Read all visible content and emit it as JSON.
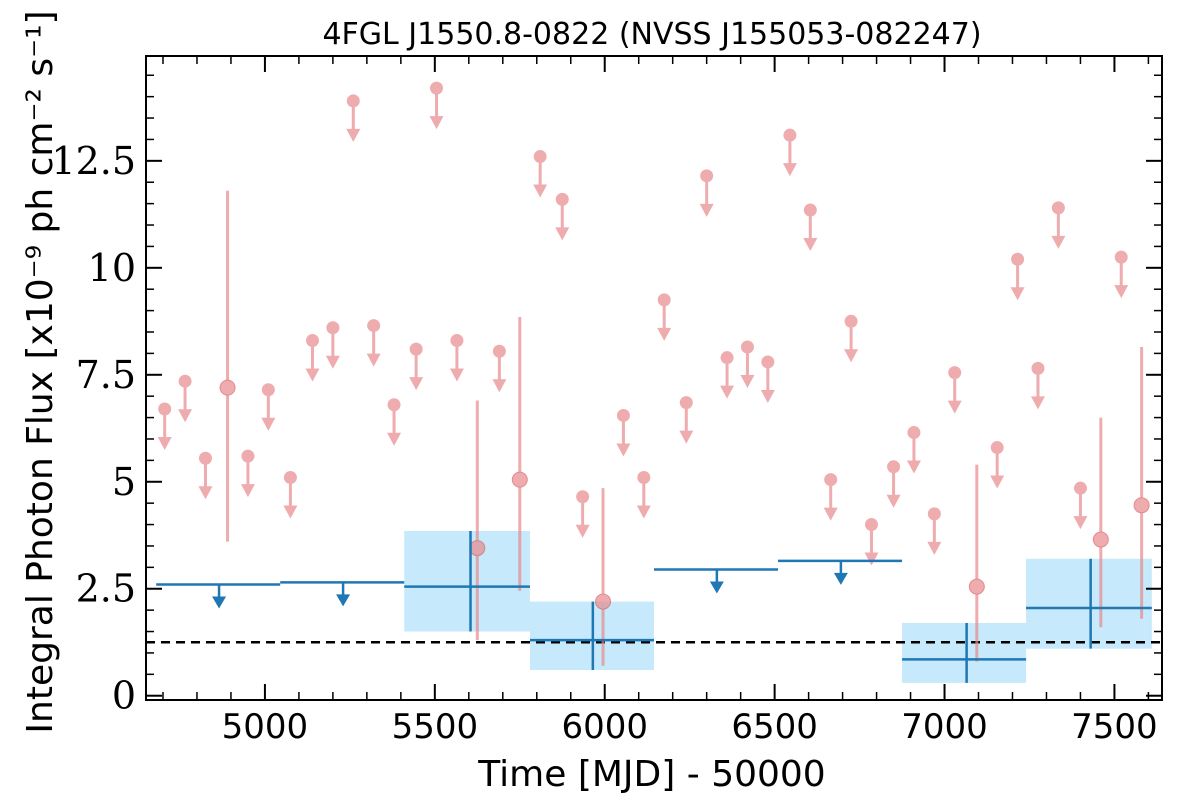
{
  "chart_data": {
    "type": "scatter",
    "title": "4FGL J1550.8-0822 (NVSS J155053-082247)",
    "xlabel": "Time [MJD] - 50000",
    "ylabel": "Integral Photon Flux [x10⁻⁹ ph cm⁻² s⁻¹]",
    "xlim": [
      4650,
      7640
    ],
    "ylim": [
      -0.1,
      14.95
    ],
    "x_ticks": [
      5000,
      5500,
      6000,
      6500,
      7000,
      7500
    ],
    "x_tick_labels": [
      "5000",
      "5500",
      "6000",
      "6500",
      "7000",
      "7500"
    ],
    "y_ticks": [
      0,
      2.5,
      5,
      7.5,
      10,
      12.5
    ],
    "y_tick_labels": [
      "0",
      "2.5",
      "5",
      "7.5",
      "10",
      "12.5"
    ],
    "colors": {
      "short_bins": "#e8898c",
      "long_bins": "#1f77b4",
      "long_band": "#c6e9fb",
      "average_line": "#000000"
    },
    "average_flux": 1.25,
    "series": [
      {
        "upper_limits": [
          {
            "x": 4705,
            "y": 6.7
          },
          {
            "x": 4765,
            "y": 7.35
          },
          {
            "x": 4825,
            "y": 5.55
          },
          {
            "x": 4950,
            "y": 5.6
          },
          {
            "x": 5010,
            "y": 7.15
          },
          {
            "x": 5075,
            "y": 5.1
          },
          {
            "x": 5140,
            "y": 8.3
          },
          {
            "x": 5200,
            "y": 8.6
          },
          {
            "x": 5260,
            "y": 13.9
          },
          {
            "x": 5320,
            "y": 8.65
          },
          {
            "x": 5380,
            "y": 6.8
          },
          {
            "x": 5445,
            "y": 8.1
          },
          {
            "x": 5505,
            "y": 14.2
          },
          {
            "x": 5565,
            "y": 8.3
          },
          {
            "x": 5690,
            "y": 8.05
          },
          {
            "x": 5810,
            "y": 12.6
          },
          {
            "x": 5875,
            "y": 11.6
          },
          {
            "x": 5935,
            "y": 4.65
          },
          {
            "x": 6055,
            "y": 6.55
          },
          {
            "x": 6115,
            "y": 5.1
          },
          {
            "x": 6175,
            "y": 9.25
          },
          {
            "x": 6240,
            "y": 6.85
          },
          {
            "x": 6300,
            "y": 12.15
          },
          {
            "x": 6360,
            "y": 7.9
          },
          {
            "x": 6420,
            "y": 8.15
          },
          {
            "x": 6480,
            "y": 7.8
          },
          {
            "x": 6545,
            "y": 13.1
          },
          {
            "x": 6605,
            "y": 11.35
          },
          {
            "x": 6665,
            "y": 5.05
          },
          {
            "x": 6725,
            "y": 8.75
          },
          {
            "x": 6785,
            "y": 4.0
          },
          {
            "x": 6850,
            "y": 5.35
          },
          {
            "x": 6910,
            "y": 6.15
          },
          {
            "x": 6970,
            "y": 4.25
          },
          {
            "x": 7030,
            "y": 7.55
          },
          {
            "x": 7155,
            "y": 5.8
          },
          {
            "x": 7215,
            "y": 10.2
          },
          {
            "x": 7275,
            "y": 7.65
          },
          {
            "x": 7335,
            "y": 11.4
          },
          {
            "x": 7400,
            "y": 4.85
          },
          {
            "x": 7520,
            "y": 10.25
          }
        ],
        "detections": [
          {
            "x": 4890,
            "y": 7.2,
            "lo": 3.6,
            "hi": 11.8
          },
          {
            "x": 5625,
            "y": 3.45,
            "lo": 1.3,
            "hi": 6.9
          },
          {
            "x": 5750,
            "y": 5.05,
            "lo": 2.45,
            "hi": 8.85
          },
          {
            "x": 5995,
            "y": 2.2,
            "lo": 0.7,
            "hi": 4.85
          },
          {
            "x": 7095,
            "y": 2.55,
            "lo": 0.8,
            "hi": 5.4
          },
          {
            "x": 7460,
            "y": 3.65,
            "lo": 1.6,
            "hi": 6.5
          },
          {
            "x": 7580,
            "y": 4.45,
            "lo": 1.8,
            "hi": 8.15
          }
        ]
      },
      {
        "upper_limits": [
          {
            "x_start": 4680,
            "x_end": 5045,
            "x_marker": 4865,
            "y": 2.6
          },
          {
            "x_start": 5045,
            "x_end": 5410,
            "x_marker": 5230,
            "y": 2.65
          },
          {
            "x_start": 6145,
            "x_end": 6510,
            "x_marker": 6330,
            "y": 2.95
          },
          {
            "x_start": 6510,
            "x_end": 6875,
            "x_marker": 6695,
            "y": 3.15
          }
        ],
        "detections": [
          {
            "x_start": 5410,
            "x_end": 5780,
            "x": 5605,
            "y": 2.55,
            "lo": 1.5,
            "hi": 3.85
          },
          {
            "x_start": 5780,
            "x_end": 6145,
            "x": 5965,
            "y": 1.3,
            "lo": 0.6,
            "hi": 2.2
          },
          {
            "x_start": 6875,
            "x_end": 7240,
            "x": 7065,
            "y": 0.85,
            "lo": 0.3,
            "hi": 1.7
          },
          {
            "x_start": 7240,
            "x_end": 7610,
            "x": 7430,
            "y": 2.05,
            "lo": 1.1,
            "hi": 3.2
          }
        ]
      }
    ]
  }
}
